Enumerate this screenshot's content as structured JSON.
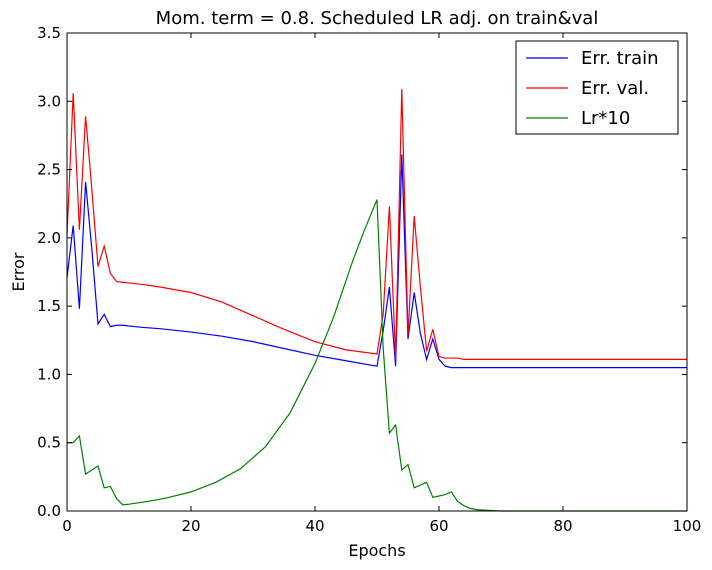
{
  "chart_data": {
    "type": "line",
    "title": "Mom. term = 0.8. Scheduled LR adj. on train&val",
    "xlabel": "Epochs",
    "ylabel": "Error",
    "xlim": [
      0,
      100
    ],
    "ylim": [
      0,
      3.5
    ],
    "xticks": [
      0,
      20,
      40,
      60,
      80,
      100
    ],
    "yticks": [
      0.0,
      0.5,
      1.0,
      1.5,
      2.0,
      2.5,
      3.0,
      3.5
    ],
    "xtick_labels": [
      "0",
      "20",
      "40",
      "60",
      "80",
      "100"
    ],
    "ytick_labels": [
      "0.0",
      "0.5",
      "1.0",
      "1.5",
      "2.0",
      "2.5",
      "3.0",
      "3.5"
    ],
    "grid": false,
    "legend_position": "top-right",
    "series": [
      {
        "name": "Err. train",
        "color": "#0000ff",
        "x": [
          0,
          1,
          2,
          3,
          4,
          5,
          6,
          7,
          8,
          9,
          10,
          12,
          15,
          20,
          25,
          30,
          35,
          40,
          45,
          50,
          51,
          52,
          53,
          54,
          55,
          56,
          57,
          58,
          59,
          60,
          61,
          62,
          63,
          64,
          65,
          70,
          80,
          90,
          100
        ],
        "y": [
          1.71,
          2.09,
          1.48,
          2.41,
          1.92,
          1.37,
          1.44,
          1.35,
          1.36,
          1.36,
          1.355,
          1.345,
          1.335,
          1.31,
          1.28,
          1.24,
          1.19,
          1.14,
          1.1,
          1.06,
          1.32,
          1.64,
          1.06,
          2.61,
          1.26,
          1.6,
          1.3,
          1.11,
          1.26,
          1.11,
          1.06,
          1.05,
          1.05,
          1.05,
          1.05,
          1.05,
          1.05,
          1.05,
          1.05
        ]
      },
      {
        "name": "Err. val.",
        "color": "#ff0000",
        "x": [
          0,
          1,
          2,
          3,
          4,
          5,
          6,
          7,
          8,
          9,
          10,
          12,
          15,
          20,
          25,
          30,
          35,
          40,
          45,
          50,
          51,
          52,
          53,
          54,
          55,
          56,
          57,
          58,
          59,
          60,
          61,
          62,
          63,
          64,
          65,
          70,
          80,
          90,
          100
        ],
        "y": [
          2.02,
          3.06,
          2.06,
          2.89,
          2.36,
          1.79,
          1.94,
          1.74,
          1.68,
          1.675,
          1.67,
          1.66,
          1.64,
          1.6,
          1.53,
          1.43,
          1.33,
          1.24,
          1.18,
          1.15,
          1.44,
          2.23,
          1.11,
          3.09,
          1.29,
          2.16,
          1.64,
          1.17,
          1.33,
          1.13,
          1.12,
          1.12,
          1.12,
          1.11,
          1.11,
          1.11,
          1.11,
          1.11,
          1.11
        ]
      },
      {
        "name": "Lr*10",
        "color": "#008000",
        "x": [
          0,
          1,
          2,
          3,
          4,
          5,
          6,
          7,
          8,
          9,
          10,
          13,
          16,
          20,
          24,
          28,
          32,
          36,
          40,
          43,
          46,
          48,
          50,
          51,
          52,
          53,
          54,
          55,
          56,
          57,
          58,
          59,
          60,
          61,
          62,
          63,
          64,
          65,
          66,
          68,
          70,
          75,
          80,
          90,
          100
        ],
        "y": [
          0.5,
          0.5,
          0.55,
          0.27,
          0.3,
          0.33,
          0.17,
          0.18,
          0.09,
          0.045,
          0.05,
          0.07,
          0.095,
          0.14,
          0.21,
          0.31,
          0.47,
          0.72,
          1.08,
          1.42,
          1.82,
          2.06,
          2.28,
          1.19,
          0.57,
          0.63,
          0.3,
          0.34,
          0.17,
          0.19,
          0.21,
          0.1,
          0.11,
          0.12,
          0.14,
          0.07,
          0.04,
          0.02,
          0.01,
          0.005,
          0.0,
          0.0,
          0.0,
          0.0,
          0.0
        ]
      }
    ]
  }
}
